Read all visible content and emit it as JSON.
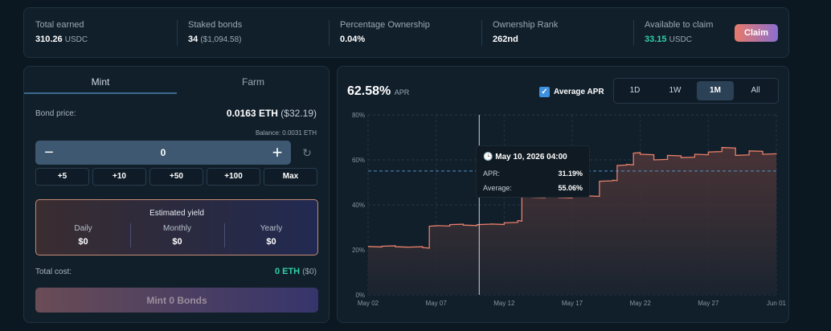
{
  "stats": [
    {
      "label": "Total earned",
      "value": "310.26",
      "unit": "USDC",
      "paren": ""
    },
    {
      "label": "Staked bonds",
      "value": "34",
      "unit": "",
      "paren": "($1,094.58)"
    },
    {
      "label": "Percentage Ownership",
      "value": "0.04%",
      "unit": "",
      "paren": ""
    },
    {
      "label": "Ownership Rank",
      "value": "262nd",
      "unit": "",
      "paren": ""
    },
    {
      "label": "Available to claim",
      "value": "33.15",
      "unit": "USDC",
      "paren": ""
    }
  ],
  "claim_label": "Claim",
  "colors": {
    "accent_green": "#2fd0a4",
    "chart_line": "#e87f6a",
    "avg_line": "#4f94c6",
    "checkbox": "#3d8fe0"
  },
  "bond": {
    "tabs": [
      "Mint",
      "Farm"
    ],
    "active_tab": "Mint",
    "price_label": "Bond price:",
    "price_value": "0.0163 ETH",
    "price_paren": "($32.19)",
    "balance": "Balance: 0.0031 ETH",
    "quantity": "0",
    "minus": "−",
    "plus": "+",
    "reset_icon": "↻",
    "increments": [
      "+5",
      "+10",
      "+50",
      "+100",
      "Max"
    ],
    "yield_title": "Estimated yield",
    "yield": [
      {
        "label": "Daily",
        "value": "$0"
      },
      {
        "label": "Monthly",
        "value": "$0"
      },
      {
        "label": "Yearly",
        "value": "$0"
      }
    ],
    "total_cost_label": "Total cost:",
    "total_cost_value": "0 ETH",
    "total_cost_paren": "($0)",
    "mint_button": "Mint 0 Bonds"
  },
  "apr": {
    "value": "62.58%",
    "unit": "APR",
    "avg_toggle_label": "Average APR",
    "avg_toggle_checked": true,
    "check_icon": "✓",
    "ranges": [
      "1D",
      "1W",
      "1M",
      "All"
    ],
    "active_range": "1M"
  },
  "tooltip": {
    "time": "May 10, 2026 04:00",
    "apr_label": "APR:",
    "apr_value": "31.19%",
    "avg_label": "Average:",
    "avg_value": "55.06%"
  },
  "chart_data": {
    "type": "area",
    "title": "",
    "xlabel": "",
    "ylabel": "",
    "x_ticks": [
      "May 02",
      "May 07",
      "May 12",
      "May 17",
      "May 22",
      "May 27",
      "Jun 01"
    ],
    "y_ticks": [
      "0%",
      "20%",
      "40%",
      "60%",
      "80%"
    ],
    "ylim": [
      0,
      80
    ],
    "grid": true,
    "average_line": 55.06,
    "hover_date": "May 10, 2026 04:00",
    "series": [
      {
        "x": [
          "May 02",
          "May 03",
          "May 04",
          "May 05",
          "May 06",
          "May 06.5",
          "May 07",
          "May 08",
          "May 09",
          "May 10",
          "May 11",
          "May 12",
          "May 13",
          "May 13.3",
          "May 14",
          "May 15",
          "May 16",
          "May 17",
          "May 18",
          "May 19",
          "May 20",
          "May 20.3",
          "May 21",
          "May 21.5",
          "May 22",
          "May 23",
          "May 24",
          "May 25",
          "May 26",
          "May 27",
          "May 28",
          "May 29",
          "May 30",
          "May 31",
          "Jun 01"
        ],
        "values": [
          21.5,
          21.6,
          21.4,
          21.2,
          21.0,
          30.5,
          30.8,
          31.2,
          31.0,
          31.2,
          31.5,
          32.0,
          33.0,
          43.5,
          43.4,
          43.6,
          43.3,
          43.8,
          44.0,
          50.5,
          51.0,
          57.5,
          58.0,
          63.0,
          62.5,
          60.0,
          62.0,
          61.0,
          62.5,
          63.5,
          65.5,
          62.0,
          64.0,
          62.5,
          62.6
        ]
      }
    ]
  }
}
